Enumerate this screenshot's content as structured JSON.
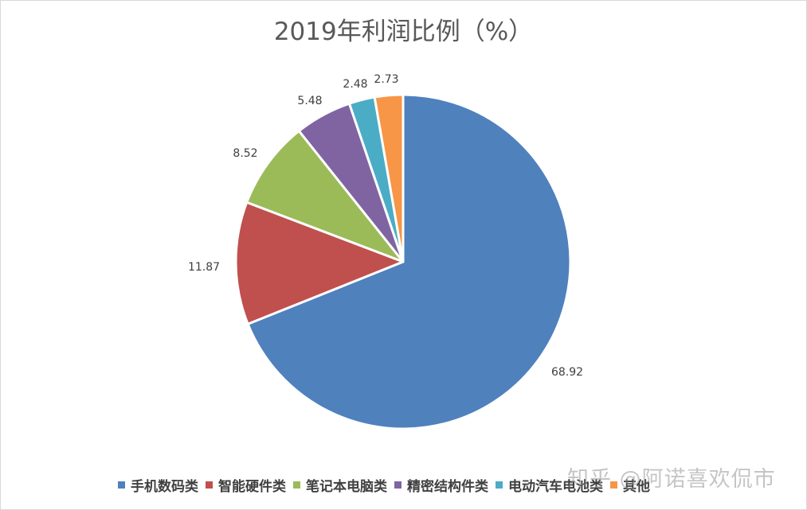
{
  "chart_data": {
    "type": "pie",
    "title": "2019年利润比例（%）",
    "categories": [
      "手机数码类",
      "智能硬件类",
      "笔记本电脑类",
      "精密结构件类",
      "电动汽车电池类",
      "其他"
    ],
    "values": [
      68.92,
      11.87,
      8.52,
      5.48,
      2.48,
      2.73
    ],
    "value_labels": [
      "68.92",
      "11.87",
      "8.52",
      "5.48",
      "2.48",
      "2.73"
    ],
    "colors": [
      "#4F81BD",
      "#C0504D",
      "#9BBB59",
      "#8064A2",
      "#4BACC6",
      "#F79646"
    ],
    "start_angle_deg": 0,
    "direction": "clockwise",
    "legend_position": "bottom",
    "data_labels": "outside_end"
  },
  "watermark": "知乎 @阿诺喜欢侃市"
}
